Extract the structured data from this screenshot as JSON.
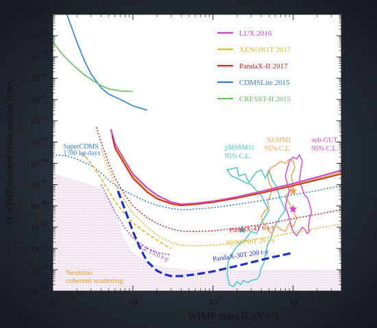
{
  "chart_data": {
    "type": "line",
    "xlabel": "WIMP mass (GeV/c²)",
    "ylabel": "SI WIMP-nucleon cross section (cm²)",
    "x_scale": "log",
    "y_scale": "log",
    "xlim": [
      1,
      4000
    ],
    "ylim": [
      1e-50,
      1e-37
    ],
    "x_ticks": [
      {
        "value": 1,
        "mant": "1",
        "exp": ""
      },
      {
        "value": 10,
        "mant": "10",
        "exp": ""
      },
      {
        "value": 100,
        "mant": "10",
        "exp": "2"
      },
      {
        "value": 1000,
        "mant": "10",
        "exp": "3"
      }
    ],
    "y_ticks": [
      {
        "value": -37,
        "exp": "-37"
      },
      {
        "value": -38,
        "exp": "-38"
      },
      {
        "value": -39,
        "exp": "-39"
      },
      {
        "value": -40,
        "exp": "-40"
      },
      {
        "value": -41,
        "exp": "-41"
      },
      {
        "value": -42,
        "exp": "-42"
      },
      {
        "value": -43,
        "exp": "-43"
      },
      {
        "value": -44,
        "exp": "-44"
      },
      {
        "value": -45,
        "exp": "-45"
      },
      {
        "value": -46,
        "exp": "-46"
      },
      {
        "value": -47,
        "exp": "-47"
      },
      {
        "value": -48,
        "exp": "-48"
      },
      {
        "value": -49,
        "exp": "-49"
      },
      {
        "value": -50,
        "exp": "-50"
      }
    ],
    "tick_mantissa": "10",
    "legend": {
      "placement": "top-right",
      "entries": [
        {
          "label": "LUX 2016",
          "color": "#d63fd2"
        },
        {
          "label": "XENON1T 2017",
          "color": "#c8c22a"
        },
        {
          "label": "PandaX-II 2017",
          "color": "#d32020"
        },
        {
          "label": "CDMSLite 2015",
          "color": "#2c7ed2"
        },
        {
          "label": "CRESST-II 2015",
          "color": "#5fc25a"
        }
      ]
    },
    "series": [
      {
        "name": "LUX 2016",
        "color": "#d63fd2",
        "dash": "solid",
        "width": 2.2,
        "x": [
          5.3,
          6,
          8,
          10,
          15,
          20,
          30,
          40,
          60,
          100,
          200,
          400,
          1000,
          2000,
          4000
        ],
        "y": [
          -42.4,
          -43.1,
          -43.9,
          -44.5,
          -45.15,
          -45.5,
          -45.82,
          -45.92,
          -45.88,
          -45.78,
          -45.58,
          -45.32,
          -44.95,
          -44.65,
          -44.33
        ]
      },
      {
        "name": "XENON1T 2017",
        "color": "#c8c22a",
        "dash": "solid",
        "width": 1.8,
        "x": [
          6,
          8,
          10,
          15,
          20,
          30,
          40,
          60,
          100,
          200,
          400,
          1000,
          2000,
          4000
        ],
        "y": [
          -43.2,
          -44.0,
          -44.6,
          -45.3,
          -45.62,
          -45.88,
          -45.97,
          -45.92,
          -45.82,
          -45.62,
          -45.38,
          -45.02,
          -44.73,
          -44.43
        ]
      },
      {
        "name": "PandaX-II 2017",
        "color": "#d32020",
        "dash": "solid",
        "width": 1.8,
        "x": [
          5.5,
          6,
          8,
          10,
          15,
          20,
          30,
          40,
          60,
          100,
          200,
          400,
          1000,
          2000,
          4000
        ],
        "y": [
          -42.7,
          -43.3,
          -44.1,
          -44.7,
          -45.35,
          -45.67,
          -45.9,
          -45.98,
          -45.93,
          -45.83,
          -45.63,
          -45.4,
          -45.05,
          -44.78,
          -44.5
        ]
      },
      {
        "name": "CDMSLite 2015",
        "color": "#2c7ed2",
        "dash": "solid",
        "width": 1.6,
        "x": [
          1.5,
          2,
          2.5,
          3,
          4,
          5,
          7,
          10,
          15
        ],
        "y": [
          -37,
          -38.3,
          -39.2,
          -39.8,
          -40.45,
          -40.75,
          -41.0,
          -41.3,
          -41.5
        ]
      },
      {
        "name": "CRESST-II 2015",
        "color": "#5fc25a",
        "dash": "solid",
        "width": 1.6,
        "x": [
          1,
          1.3,
          1.6,
          2,
          2.5,
          3,
          4,
          5,
          7,
          10
        ],
        "y": [
          -38.3,
          -38.85,
          -39.2,
          -39.55,
          -39.85,
          -40.05,
          -40.35,
          -40.5,
          -40.6,
          -40.62
        ]
      },
      {
        "name": "",
        "color": "#d32020",
        "dash": "2,2.5",
        "width": 1.6,
        "x": [
          3.5,
          4,
          5,
          6,
          8,
          10,
          15,
          20,
          30,
          40,
          60,
          100,
          200,
          500,
          1000,
          2000,
          4000
        ],
        "y": [
          -42.3,
          -43.0,
          -44.0,
          -44.7,
          -45.5,
          -46.0,
          -46.55,
          -46.83,
          -47.08,
          -47.18,
          -47.2,
          -47.17,
          -47.05,
          -46.82,
          -46.6,
          -46.4,
          -46.18
        ]
      },
      {
        "name": "",
        "color": "#e8b020",
        "dash": "2,2.5",
        "width": 1.6,
        "x": [
          4,
          5,
          6,
          8,
          10,
          15,
          20,
          30,
          40,
          60,
          100,
          200,
          500,
          1000,
          2000,
          4000
        ],
        "y": [
          -43.3,
          -44.3,
          -45.0,
          -45.8,
          -46.35,
          -47.0,
          -47.38,
          -47.72,
          -47.85,
          -47.88,
          -47.85,
          -47.72,
          -47.47,
          -47.26,
          -47.05,
          -46.85
        ]
      },
      {
        "name": "",
        "color": "#2c7ed2",
        "dash": "2,2.5",
        "width": 1.6,
        "x": [
          1,
          1.5,
          2,
          3,
          4,
          5,
          7,
          10,
          15,
          20,
          30,
          40,
          60,
          100,
          200,
          500,
          1000,
          2000,
          4000
        ],
        "y": [
          -43.6,
          -43.65,
          -43.8,
          -44.1,
          -44.45,
          -44.8,
          -45.2,
          -45.5,
          -45.8,
          -45.98,
          -46.12,
          -46.18,
          -46.15,
          -46.08,
          -45.93,
          -45.7,
          -45.48,
          -45.28,
          -45.05
        ]
      },
      {
        "name": "",
        "color": "#9a3cd6",
        "dash": "2,2.5",
        "width": 1.6,
        "x": [
          4,
          5,
          6,
          8,
          10,
          15,
          20,
          30
        ],
        "y": [
          -45.0,
          -45.7,
          -46.3,
          -47.05,
          -47.5,
          -48.0,
          -48.2,
          -48.3
        ]
      },
      {
        "name": "",
        "color": "#e8b020",
        "dash": "5,3",
        "width": 1.6,
        "x": [
          2.3,
          3,
          4,
          5,
          6,
          8,
          10,
          15,
          20,
          25,
          30
        ],
        "y": [
          -43.5,
          -44.0,
          -44.7,
          -45.3,
          -45.8,
          -46.4,
          -46.8,
          -47.3,
          -47.6,
          -47.85,
          -48.0
        ]
      },
      {
        "name": "",
        "color": "#1a2ec8",
        "dash": "11,5",
        "width": 3.2,
        "x": [
          6.5,
          8,
          10,
          12,
          15,
          20,
          25,
          30,
          40,
          60,
          100,
          200,
          500,
          1000
        ],
        "y": [
          -45.3,
          -46.2,
          -47.2,
          -47.9,
          -48.6,
          -49.05,
          -49.22,
          -49.3,
          -49.3,
          -49.22,
          -49.08,
          -48.82,
          -48.45,
          -48.2
        ]
      }
    ],
    "regions": [
      {
        "label": "pMSSM11 95% C.L.",
        "color": "#3ac2c8",
        "x": [
          150,
          200,
          210,
          250,
          280,
          350,
          400,
          450,
          500,
          550,
          600,
          700,
          800,
          700,
          600,
          550,
          520,
          480,
          450,
          430,
          400,
          380,
          350,
          300,
          270,
          240,
          220,
          200,
          180,
          160,
          150,
          155,
          175,
          200,
          250,
          300,
          350,
          400,
          450,
          500,
          450,
          400,
          350,
          300,
          250,
          200,
          170,
          150
        ],
        "y": [
          -44.3,
          -44.2,
          -44.6,
          -44.5,
          -44.9,
          -44.4,
          -44.3,
          -44.7,
          -44.3,
          -44.8,
          -45.0,
          -45.7,
          -46.2,
          -46.5,
          -46.9,
          -47.3,
          -47.6,
          -47.8,
          -48.3,
          -48.7,
          -48.9,
          -49.3,
          -49.45,
          -49.5,
          -49.6,
          -49.5,
          -49.7,
          -49.55,
          -49.8,
          -49.7,
          -49.2,
          -48.6,
          -48.2,
          -47.9,
          -47.6,
          -47.2,
          -47.3,
          -46.8,
          -46.5,
          -46.2,
          -45.9,
          -45.5,
          -45.3,
          -45.0,
          -44.9,
          -44.7,
          -44.6,
          -44.3
        ]
      },
      {
        "label": "NUHM1 95% C.L.",
        "color": "#f0a040",
        "x": [
          530,
          600,
          700,
          800,
          900,
          1000,
          1050,
          950,
          1000,
          900,
          800,
          900,
          1000,
          1100,
          1000,
          900,
          800,
          700,
          600,
          550,
          500,
          450,
          420,
          400,
          450,
          500,
          480,
          520,
          550,
          500,
          480,
          530
        ],
        "y": [
          -44.2,
          -44.1,
          -43.9,
          -44.0,
          -43.8,
          -43.9,
          -44.2,
          -44.6,
          -45.0,
          -45.3,
          -45.6,
          -45.9,
          -46.2,
          -46.6,
          -47.0,
          -46.8,
          -47.2,
          -47.1,
          -46.9,
          -47.3,
          -47.2,
          -46.9,
          -46.8,
          -46.5,
          -46.2,
          -46.1,
          -45.8,
          -45.5,
          -45.2,
          -44.9,
          -44.6,
          -44.2
        ]
      },
      {
        "label": "sub-GUT 95% C.L.",
        "color": "#d63fd2",
        "x": [
          900,
          1000,
          1100,
          1200,
          1300,
          1250,
          1200,
          1300,
          1400,
          1500,
          1600,
          1700,
          1600,
          1550,
          1600,
          1500,
          1400,
          1300,
          1200,
          1100,
          1000,
          950,
          900,
          850,
          800,
          850,
          900,
          850,
          800,
          850,
          900
        ],
        "y": [
          -43.9,
          -43.7,
          -43.8,
          -43.6,
          -43.9,
          -44.3,
          -44.8,
          -45.2,
          -45.5,
          -45.6,
          -45.9,
          -46.3,
          -46.6,
          -47.0,
          -47.2,
          -47.3,
          -47.1,
          -47.0,
          -47.2,
          -47.4,
          -47.2,
          -47.0,
          -46.6,
          -46.3,
          -46.0,
          -45.6,
          -45.3,
          -45.0,
          -44.6,
          -44.2,
          -43.9
        ]
      }
    ],
    "neutrino_floor": {
      "label_1": "Neutrino",
      "label_2": "coherent scattering",
      "color": "#e8d2e4",
      "x": [
        1,
        1.3,
        1.6,
        2,
        2.5,
        3,
        4,
        5,
        6,
        7,
        8,
        10,
        15,
        20,
        30,
        50,
        100,
        300,
        1000,
        4000
      ],
      "y": [
        -44.5,
        -44.6,
        -44.7,
        -44.8,
        -44.9,
        -45.0,
        -45.2,
        -45.6,
        -46.3,
        -47.1,
        -47.6,
        -48.2,
        -48.6,
        -48.8,
        -48.9,
        -49.0,
        -49.0,
        -49.0,
        -49.0,
        -49.0
      ]
    },
    "markers": [
      {
        "type": "star",
        "x": 230,
        "y": -47.12,
        "color": "#3ac2c8"
      },
      {
        "type": "star",
        "x": 1000,
        "y": -45.3,
        "color": "#f0a040"
      },
      {
        "type": "star",
        "x": 1000,
        "y": -46.15,
        "color": "#d63fd2"
      }
    ],
    "annotations": [
      {
        "text": "SuperCDMS",
        "x": 1.35,
        "y": -43.3,
        "color": "#2c7ed2",
        "rotate": 0
      },
      {
        "text": "1700 kg-days",
        "x": 1.35,
        "y": -43.62,
        "color": "#2c7ed2",
        "rotate": 0
      },
      {
        "text": "PandaX-4T 6 t-y",
        "x": 160,
        "y": -47.25,
        "color": "#d32020",
        "rotate": -4
      },
      {
        "text": "XENONnT 20 t-y",
        "x": 145,
        "y": -47.85,
        "color": "#e8b020",
        "rotate": -4
      },
      {
        "text": "LZ 15.6 t-y",
        "x": 12,
        "y": -48.0,
        "color": "#9a3cd6",
        "rotate": 25
      },
      {
        "text": "PandaX-30T 200 t-y",
        "x": 100,
        "y": -48.6,
        "color": "#1a2ec8",
        "rotate": -8
      },
      {
        "text": "pMSSM11",
        "x": 140,
        "y": -43.35,
        "color": "#3ac2c8",
        "rotate": 0
      },
      {
        "text": "95% C.L.",
        "x": 140,
        "y": -43.75,
        "color": "#3ac2c8",
        "rotate": 0
      },
      {
        "text": "NUHM1",
        "x": 470,
        "y": -43.0,
        "color": "#f0a040",
        "rotate": 0
      },
      {
        "text": "95% C.L.",
        "x": 440,
        "y": -43.4,
        "color": "#f0a040",
        "rotate": 0
      },
      {
        "text": "sub-GUT",
        "x": 1700,
        "y": -43.0,
        "color": "#d63fd2",
        "rotate": 0
      },
      {
        "text": "95% C.L.",
        "x": 1700,
        "y": -43.4,
        "color": "#d63fd2",
        "rotate": 0
      }
    ]
  }
}
